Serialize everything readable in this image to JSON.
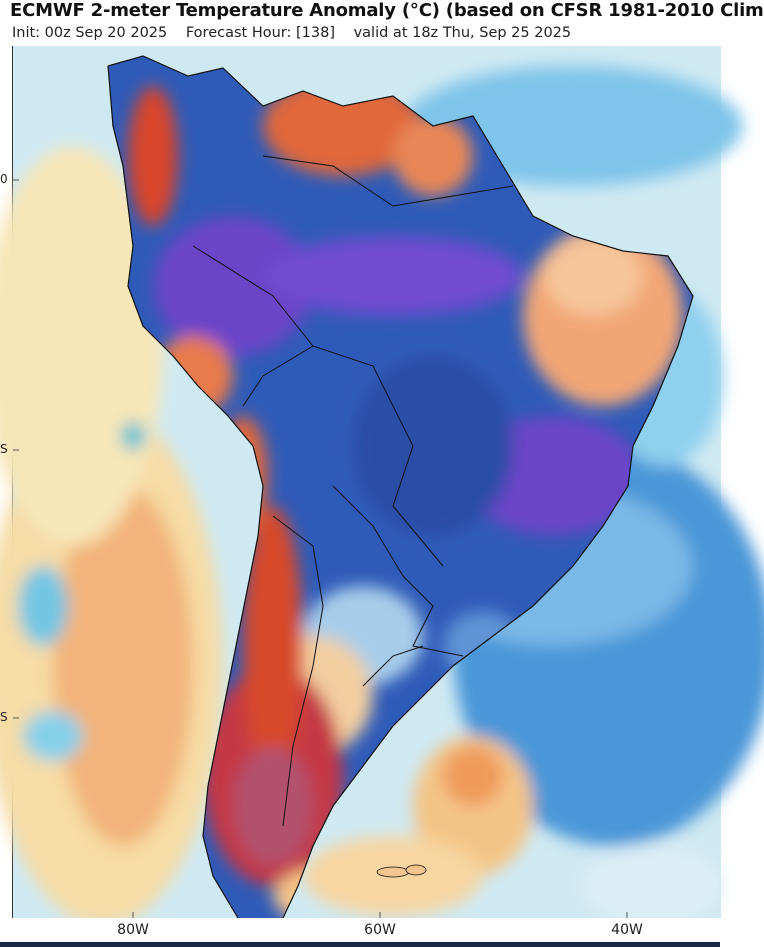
{
  "header": {
    "title": "ECMWF 2-meter Temperature Anomaly (°C) (based on CFSR 1981-2010 Clim",
    "init": "Init: 00z Sep 20 2025",
    "forecast_hour": "Forecast Hour: [138]",
    "valid": "valid at 18z Thu, Sep 25 2025"
  },
  "axis": {
    "lon_labels": [
      "80W",
      "60W",
      "40W"
    ],
    "lat_labels": [
      "0",
      "S",
      "S"
    ]
  },
  "palette": {
    "ocean_cool": "#3e8fd6",
    "ocean_light": "#a8dcf0",
    "warm_light": "#f6dca6",
    "warm": "#f2a66b",
    "hot": "#d8452a",
    "very_hot": "#a8233a",
    "cold": "#2f5bb8",
    "very_cold": "#6a44c8"
  }
}
